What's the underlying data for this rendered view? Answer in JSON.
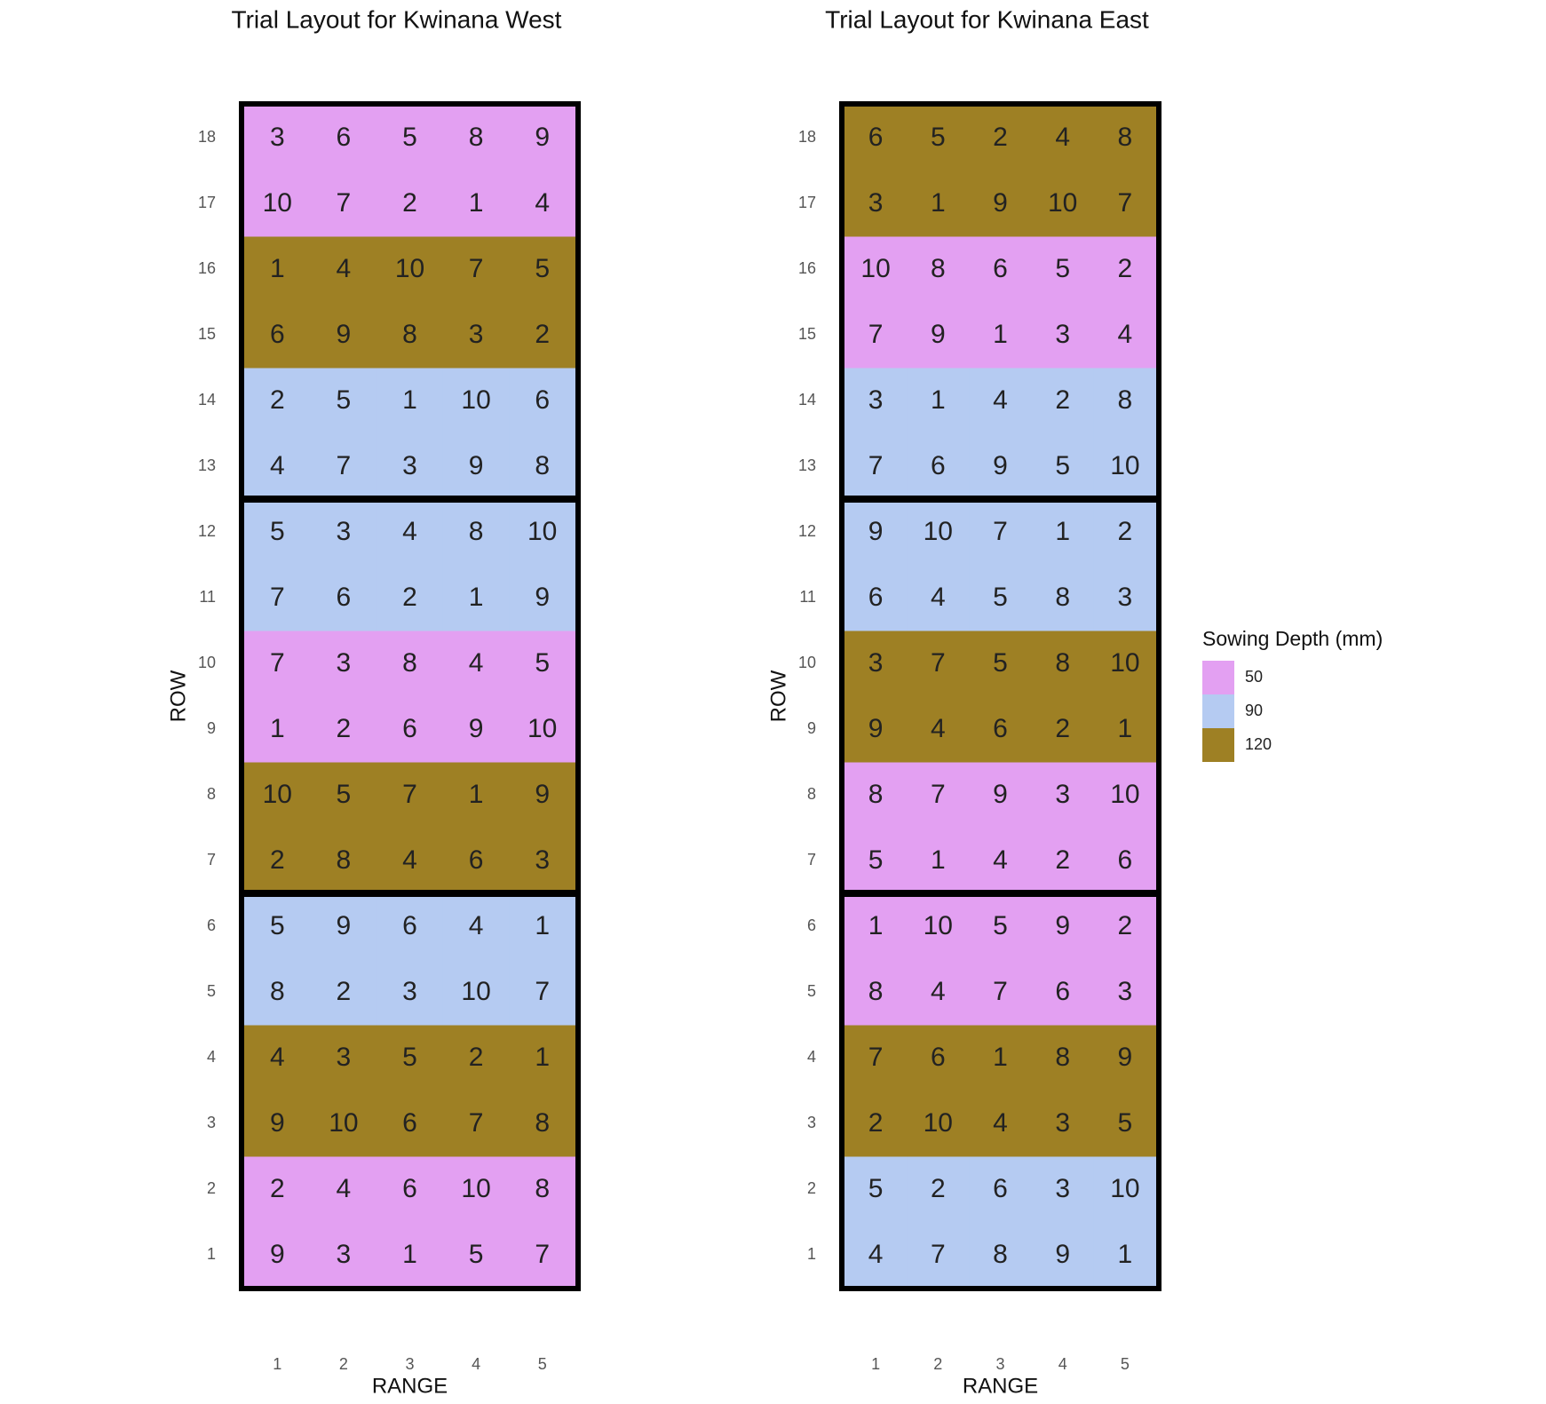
{
  "chart_data": [
    {
      "type": "tile",
      "title": "Trial Layout for Kwinana West",
      "xlabel": "RANGE",
      "ylabel": "ROW",
      "xlim": [
        0.5,
        5.5
      ],
      "ylim": [
        0.5,
        18.5
      ],
      "xticks": [
        1,
        2,
        3,
        4,
        5
      ],
      "yticks": [
        1,
        2,
        3,
        4,
        5,
        6,
        7,
        8,
        9,
        10,
        11,
        12,
        13,
        14,
        15,
        16,
        17,
        18
      ],
      "depth": [
        50,
        50,
        120,
        120,
        90,
        90,
        120,
        120,
        50,
        50,
        90,
        90,
        90,
        90,
        120,
        120,
        50,
        50
      ],
      "cells": [
        [
          9,
          3,
          1,
          5,
          7
        ],
        [
          2,
          4,
          6,
          10,
          8
        ],
        [
          9,
          10,
          6,
          7,
          8
        ],
        [
          4,
          3,
          5,
          2,
          1
        ],
        [
          8,
          2,
          3,
          10,
          7
        ],
        [
          5,
          9,
          6,
          4,
          1
        ],
        [
          2,
          8,
          4,
          6,
          3
        ],
        [
          10,
          5,
          7,
          1,
          9
        ],
        [
          1,
          2,
          6,
          9,
          10
        ],
        [
          7,
          3,
          8,
          4,
          5
        ],
        [
          7,
          6,
          2,
          1,
          9
        ],
        [
          5,
          3,
          4,
          8,
          10
        ],
        [
          4,
          7,
          3,
          9,
          8
        ],
        [
          2,
          5,
          1,
          10,
          6
        ],
        [
          6,
          9,
          8,
          3,
          2
        ],
        [
          1,
          4,
          10,
          7,
          5
        ],
        [
          10,
          7,
          2,
          1,
          4
        ],
        [
          3,
          6,
          5,
          8,
          9
        ]
      ]
    },
    {
      "type": "tile",
      "title": "Trial Layout for Kwinana East",
      "xlabel": "RANGE",
      "ylabel": "ROW",
      "xlim": [
        0.5,
        5.5
      ],
      "ylim": [
        0.5,
        18.5
      ],
      "xticks": [
        1,
        2,
        3,
        4,
        5
      ],
      "yticks": [
        1,
        2,
        3,
        4,
        5,
        6,
        7,
        8,
        9,
        10,
        11,
        12,
        13,
        14,
        15,
        16,
        17,
        18
      ],
      "depth": [
        90,
        90,
        120,
        120,
        50,
        50,
        50,
        50,
        120,
        120,
        90,
        90,
        90,
        90,
        50,
        50,
        120,
        120
      ],
      "cells": [
        [
          4,
          7,
          8,
          9,
          1
        ],
        [
          5,
          2,
          6,
          3,
          10
        ],
        [
          2,
          10,
          4,
          3,
          5
        ],
        [
          7,
          6,
          1,
          8,
          9
        ],
        [
          8,
          4,
          7,
          6,
          3
        ],
        [
          1,
          10,
          5,
          9,
          2
        ],
        [
          5,
          1,
          4,
          2,
          6
        ],
        [
          8,
          7,
          9,
          3,
          10
        ],
        [
          9,
          4,
          6,
          2,
          1
        ],
        [
          3,
          7,
          5,
          8,
          10
        ],
        [
          6,
          4,
          5,
          8,
          3
        ],
        [
          9,
          10,
          7,
          1,
          2
        ],
        [
          7,
          6,
          9,
          5,
          10
        ],
        [
          3,
          1,
          4,
          2,
          8
        ],
        [
          7,
          9,
          1,
          3,
          4
        ],
        [
          10,
          8,
          6,
          5,
          2
        ],
        [
          3,
          1,
          9,
          10,
          7
        ],
        [
          6,
          5,
          2,
          4,
          8
        ]
      ]
    }
  ],
  "legend": {
    "title": "Sowing Depth (mm)",
    "levels": [
      50,
      90,
      120
    ],
    "colors": [
      "#e3a0f2",
      "#b5cbf2",
      "#9e8024"
    ]
  }
}
